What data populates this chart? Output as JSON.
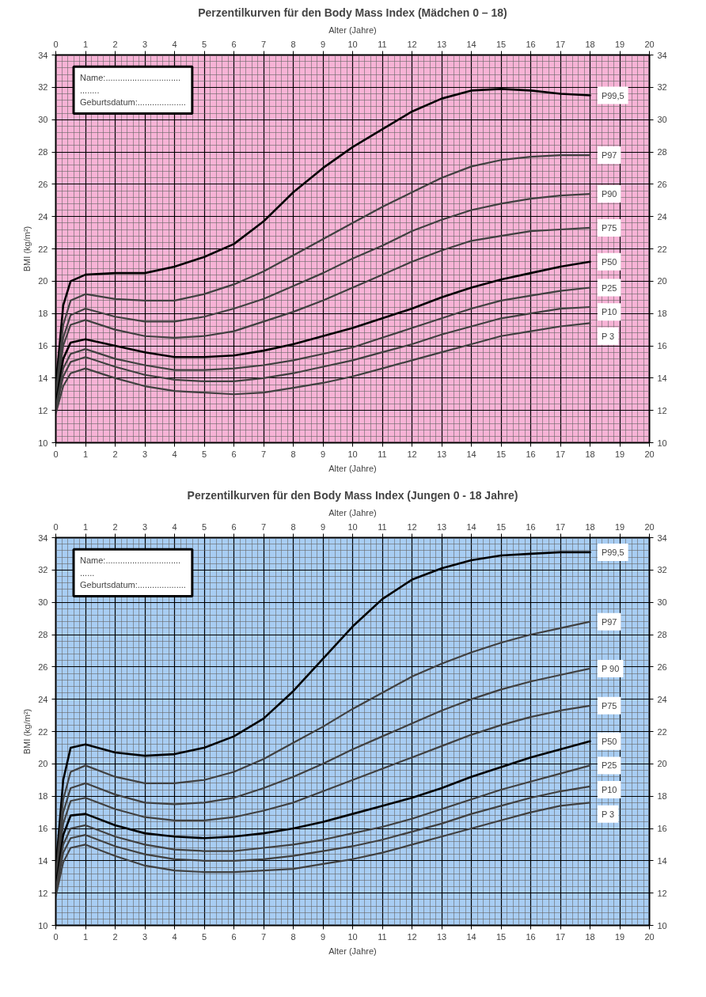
{
  "chart_data": [
    {
      "type": "line",
      "title": "Perzentilkurven für den Body Mass Index (Mädchen 0 – 18)",
      "xlabel": "Alter (Jahre)",
      "x2label": "Alter (Jahre)",
      "ylabel": "BMI (kg/m²)",
      "x": [
        0,
        0.25,
        0.5,
        1,
        2,
        3,
        4,
        5,
        6,
        7,
        8,
        9,
        10,
        11,
        12,
        13,
        14,
        15,
        16,
        17,
        18
      ],
      "xlim": [
        0,
        20
      ],
      "xticks": [
        0,
        1,
        2,
        3,
        4,
        5,
        6,
        7,
        8,
        9,
        10,
        11,
        12,
        13,
        14,
        15,
        16,
        17,
        18,
        19,
        20
      ],
      "x2lim": [
        0,
        20
      ],
      "x2ticks": [
        0,
        1,
        2,
        3,
        4,
        5,
        6,
        7,
        8,
        9,
        10,
        11,
        12,
        13,
        14,
        15,
        16,
        17,
        18,
        19,
        20
      ],
      "ylim": [
        10,
        34
      ],
      "yticks": [
        10,
        12,
        14,
        16,
        18,
        20,
        22,
        24,
        26,
        28,
        30,
        32,
        34
      ],
      "y2lim": [
        10,
        34
      ],
      "y2ticks": [
        10,
        12,
        14,
        16,
        18,
        20,
        22,
        24,
        26,
        28,
        30,
        32,
        34
      ],
      "grid": true,
      "line_style": "solid",
      "annotations": [
        "Name:...............................",
        "........",
        "Geburtsdatum:...................."
      ],
      "series": [
        {
          "name": "P99,5",
          "color": "#000000",
          "values": [
            13.5,
            18.5,
            20,
            20.4,
            20.5,
            20.5,
            20.9,
            21.5,
            22.3,
            23.7,
            25.5,
            27,
            28.3,
            29.4,
            30.5,
            31.3,
            31.8,
            31.9,
            31.8,
            31.6,
            31.5
          ]
        },
        {
          "name": "P97",
          "color": "#404040",
          "values": [
            13,
            17.3,
            18.8,
            19.2,
            18.9,
            18.8,
            18.8,
            19.2,
            19.8,
            20.6,
            21.6,
            22.6,
            23.6,
            24.6,
            25.5,
            26.4,
            27.1,
            27.5,
            27.7,
            27.8,
            27.8
          ]
        },
        {
          "name": "P90",
          "color": "#404040",
          "values": [
            12.8,
            16.5,
            17.9,
            18.3,
            17.8,
            17.5,
            17.5,
            17.8,
            18.3,
            18.9,
            19.7,
            20.5,
            21.4,
            22.2,
            23.1,
            23.8,
            24.4,
            24.8,
            25.1,
            25.3,
            25.4
          ]
        },
        {
          "name": "P75",
          "color": "#404040",
          "values": [
            12.6,
            16,
            17.3,
            17.6,
            17,
            16.6,
            16.5,
            16.6,
            16.9,
            17.5,
            18.1,
            18.8,
            19.6,
            20.4,
            21.2,
            21.9,
            22.5,
            22.8,
            23.1,
            23.2,
            23.3
          ]
        },
        {
          "name": "P50",
          "color": "#000000",
          "values": [
            12.4,
            15.2,
            16.2,
            16.4,
            16,
            15.6,
            15.3,
            15.3,
            15.4,
            15.7,
            16.1,
            16.6,
            17.1,
            17.7,
            18.3,
            19,
            19.6,
            20.1,
            20.5,
            20.9,
            21.2
          ]
        },
        {
          "name": "P25",
          "color": "#404040",
          "values": [
            12.2,
            14.6,
            15.5,
            15.8,
            15.2,
            14.8,
            14.5,
            14.5,
            14.6,
            14.8,
            15.1,
            15.5,
            15.9,
            16.5,
            17.1,
            17.7,
            18.3,
            18.8,
            19.1,
            19.4,
            19.6
          ]
        },
        {
          "name": "P10",
          "color": "#404040",
          "values": [
            12,
            14.1,
            15,
            15.3,
            14.7,
            14.2,
            13.9,
            13.8,
            13.8,
            14,
            14.3,
            14.7,
            15.1,
            15.6,
            16.1,
            16.7,
            17.2,
            17.7,
            18,
            18.3,
            18.4
          ]
        },
        {
          "name": "P 3",
          "color": "#404040",
          "values": [
            11.8,
            13.5,
            14.3,
            14.6,
            14,
            13.5,
            13.2,
            13.1,
            13,
            13.1,
            13.4,
            13.7,
            14.1,
            14.6,
            15.1,
            15.6,
            16.1,
            16.6,
            16.9,
            17.2,
            17.4
          ]
        }
      ]
    },
    {
      "type": "line",
      "title": "Perzentilkurven für den Body Mass Index (Jungen 0 - 18 Jahre)",
      "xlabel": "Alter (Jahre)",
      "x2label": "Alter (Jahre)",
      "ylabel": "BMI (kg/m²)",
      "x": [
        0,
        0.25,
        0.5,
        1,
        2,
        3,
        4,
        5,
        6,
        7,
        8,
        9,
        10,
        11,
        12,
        13,
        14,
        15,
        16,
        17,
        18
      ],
      "xlim": [
        0,
        20
      ],
      "xticks": [
        0,
        1,
        2,
        3,
        4,
        5,
        6,
        7,
        8,
        9,
        10,
        11,
        12,
        13,
        14,
        15,
        16,
        17,
        18,
        19,
        20
      ],
      "x2lim": [
        0,
        20
      ],
      "x2ticks": [
        0,
        1,
        2,
        3,
        4,
        5,
        6,
        7,
        8,
        9,
        10,
        11,
        12,
        13,
        14,
        15,
        16,
        17,
        18,
        19,
        20
      ],
      "ylim": [
        10,
        34
      ],
      "yticks": [
        10,
        12,
        14,
        16,
        18,
        20,
        22,
        24,
        26,
        28,
        30,
        32,
        34
      ],
      "y2lim": [
        10,
        34
      ],
      "y2ticks": [
        10,
        12,
        14,
        16,
        18,
        20,
        22,
        24,
        26,
        28,
        30,
        32,
        34
      ],
      "grid": true,
      "line_style": "solid",
      "annotations": [
        "Name:...............................",
        "......",
        "Geburtsdatum:...................."
      ],
      "series": [
        {
          "name": "P99,5",
          "color": "#000000",
          "values": [
            13.5,
            19,
            21,
            21.2,
            20.7,
            20.5,
            20.6,
            21,
            21.7,
            22.8,
            24.5,
            26.5,
            28.5,
            30.2,
            31.4,
            32.1,
            32.6,
            32.9,
            33,
            33.1,
            33.1
          ]
        },
        {
          "name": "P97",
          "color": "#404040",
          "values": [
            13,
            17.8,
            19.5,
            19.9,
            19.2,
            18.8,
            18.8,
            19,
            19.5,
            20.3,
            21.3,
            22.3,
            23.4,
            24.4,
            25.4,
            26.2,
            26.9,
            27.5,
            28,
            28.4,
            28.8
          ]
        },
        {
          "name": "P 90",
          "color": "#404040",
          "values": [
            12.8,
            17,
            18.5,
            18.8,
            18.1,
            17.6,
            17.5,
            17.6,
            17.9,
            18.5,
            19.2,
            20,
            20.9,
            21.7,
            22.5,
            23.3,
            24,
            24.6,
            25.1,
            25.5,
            25.9
          ]
        },
        {
          "name": "P75",
          "color": "#404040",
          "values": [
            12.6,
            16.3,
            17.7,
            17.9,
            17.2,
            16.7,
            16.5,
            16.5,
            16.7,
            17.1,
            17.6,
            18.3,
            19,
            19.7,
            20.4,
            21.1,
            21.8,
            22.4,
            22.9,
            23.3,
            23.6
          ]
        },
        {
          "name": "P50",
          "color": "#000000",
          "values": [
            12.4,
            15.6,
            16.8,
            16.9,
            16.2,
            15.7,
            15.5,
            15.4,
            15.5,
            15.7,
            16,
            16.4,
            16.9,
            17.4,
            17.9,
            18.5,
            19.2,
            19.8,
            20.4,
            20.9,
            21.4
          ]
        },
        {
          "name": "P25",
          "color": "#404040",
          "values": [
            12.2,
            15,
            16,
            16.2,
            15.5,
            15,
            14.7,
            14.6,
            14.6,
            14.8,
            15,
            15.3,
            15.7,
            16.1,
            16.6,
            17.2,
            17.8,
            18.4,
            18.9,
            19.4,
            19.9
          ]
        },
        {
          "name": "P10",
          "color": "#404040",
          "values": [
            12,
            14.5,
            15.4,
            15.6,
            14.9,
            14.4,
            14.1,
            14,
            14,
            14.1,
            14.3,
            14.6,
            14.9,
            15.3,
            15.8,
            16.3,
            16.9,
            17.4,
            17.9,
            18.3,
            18.6
          ]
        },
        {
          "name": "P 3",
          "color": "#404040",
          "values": [
            11.8,
            13.9,
            14.8,
            15,
            14.3,
            13.7,
            13.4,
            13.3,
            13.3,
            13.4,
            13.5,
            13.8,
            14.1,
            14.5,
            15,
            15.5,
            16,
            16.5,
            17,
            17.4,
            17.6
          ]
        }
      ]
    }
  ]
}
